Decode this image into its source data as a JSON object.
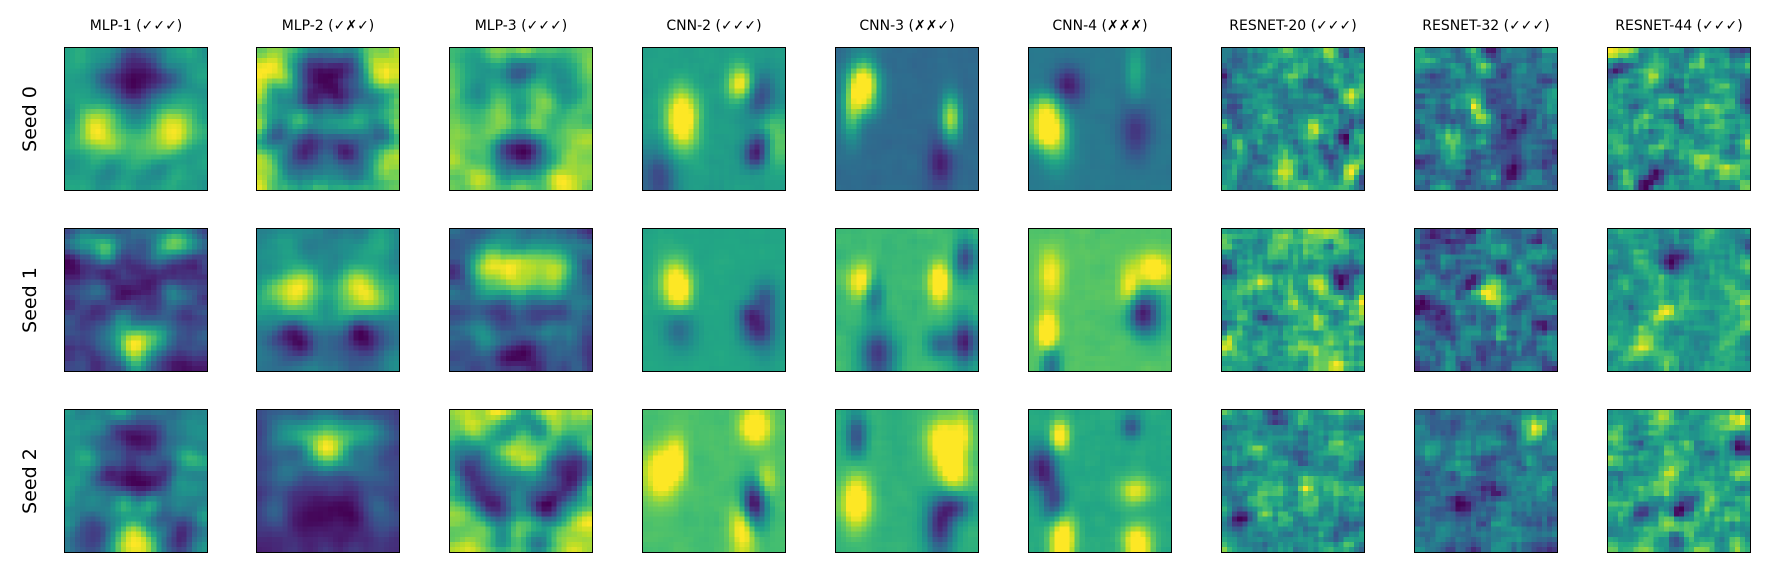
{
  "figure": {
    "columns": [
      {
        "title": "MLP-1 (✓✓✓)",
        "style": "mlp"
      },
      {
        "title": "MLP-2 (✓✗✓)",
        "style": "mlp"
      },
      {
        "title": "MLP-3 (✓✓✓)",
        "style": "mlp"
      },
      {
        "title": "CNN-2 (✓✓✓)",
        "style": "cnn"
      },
      {
        "title": "CNN-3 (✗✗✓)",
        "style": "cnn"
      },
      {
        "title": "CNN-4 (✗✗✗)",
        "style": "cnn"
      },
      {
        "title": "RESNET-20 (✓✓✓)",
        "style": "resnet"
      },
      {
        "title": "RESNET-32 (✓✓✓)",
        "style": "resnet"
      },
      {
        "title": "RESNET-44 (✓✓✓)",
        "style": "resnet"
      }
    ],
    "rows": [
      {
        "label": "Seed 0"
      },
      {
        "label": "Seed 1"
      },
      {
        "label": "Seed 2"
      }
    ],
    "colormap": "viridis"
  }
}
